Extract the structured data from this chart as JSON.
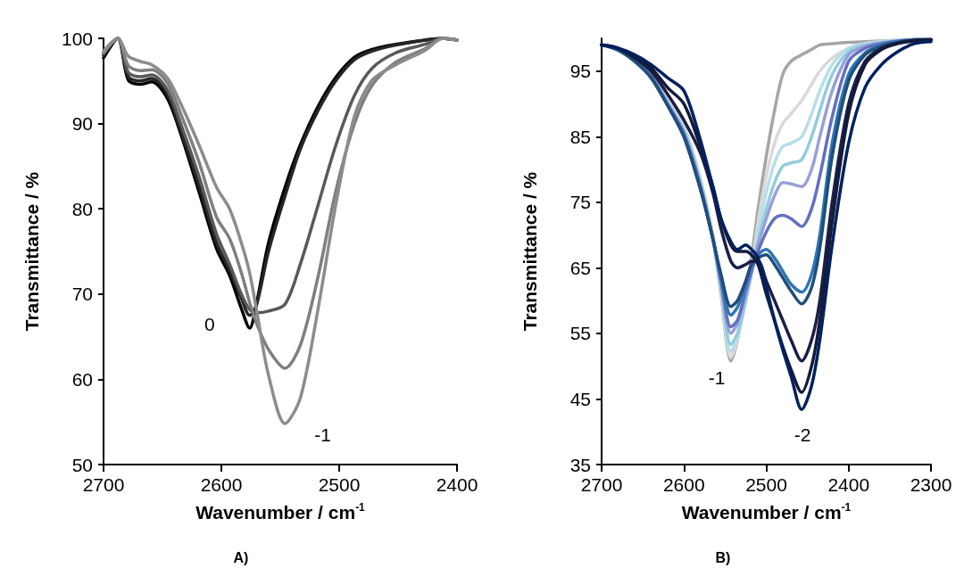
{
  "chart_data": [
    {
      "type": "line",
      "title": "A)",
      "xlabel": "Wavenumber / cm$^{-1}$",
      "ylabel": "Transmittance / %",
      "x": [
        2700,
        2688,
        2679,
        2669,
        2659,
        2646,
        2634,
        2619,
        2604,
        2593,
        2583,
        2576,
        2570,
        2560,
        2546,
        2533,
        2518,
        2503,
        2487,
        2472,
        2452,
        2427,
        2412,
        2400
      ],
      "series": [
        {
          "color": "#000000",
          "values": [
            97.7,
            100,
            95.1,
            94.6,
            94.9,
            93.0,
            88.6,
            82.0,
            75.3,
            72.2,
            68.3,
            66.0,
            69.0,
            76.0,
            82.5,
            87.5,
            92.0,
            95.4,
            97.8,
            98.7,
            99.3,
            99.8,
            100,
            99.8
          ]
        },
        {
          "color": "#262626",
          "values": [
            98.0,
            100,
            95.5,
            95.0,
            95.3,
            93.5,
            89.0,
            82.8,
            76.0,
            72.8,
            69.5,
            67.5,
            68.8,
            75.0,
            81.5,
            87.0,
            91.5,
            95.0,
            97.5,
            98.5,
            99.2,
            99.8,
            100,
            99.8
          ]
        },
        {
          "color": "#595959",
          "values": [
            98.2,
            100,
            96.0,
            95.5,
            95.7,
            94.0,
            89.8,
            83.8,
            77.0,
            73.5,
            70.0,
            68.2,
            67.8,
            68.0,
            68.8,
            73.5,
            80.4,
            87.4,
            93.3,
            96.5,
            98.3,
            99.3,
            100,
            99.8
          ]
        },
        {
          "color": "#7f7f7f",
          "values": [
            98.3,
            100,
            96.8,
            96.2,
            96.3,
            94.8,
            91.0,
            85.5,
            79.0,
            76.5,
            72.5,
            69.0,
            66.5,
            63.5,
            61.3,
            64.0,
            72.0,
            82.0,
            90.0,
            94.5,
            97.2,
            98.8,
            100,
            99.8
          ]
        },
        {
          "color": "#8c8c8c",
          "values": [
            98.5,
            100,
            97.9,
            97.3,
            96.9,
            95.4,
            92.2,
            87.5,
            82.5,
            80.0,
            76.0,
            72.5,
            68.0,
            60.5,
            54.8,
            57.8,
            68.2,
            80.4,
            90.9,
            95.1,
            96.9,
            98.6,
            100,
            99.8
          ]
        }
      ],
      "xlim": [
        2700,
        2400
      ],
      "ylim": [
        50,
        100
      ],
      "xticks": [
        2700,
        2600,
        2500,
        2400
      ],
      "yticks": [
        50,
        60,
        70,
        80,
        90,
        100
      ],
      "annotations": [
        "0",
        "-1"
      ]
    },
    {
      "type": "line",
      "title": "B)",
      "xlabel": "Wavenumber / cm$^{-1}$",
      "ylabel": "Transmittance / %",
      "x": [
        2700,
        2680,
        2660,
        2640,
        2620,
        2600,
        2580,
        2565,
        2555,
        2543,
        2535,
        2525,
        2518,
        2510,
        2500,
        2490,
        2480,
        2470,
        2457,
        2445,
        2435,
        2420,
        2400,
        2380,
        2360,
        2340,
        2320,
        2300
      ],
      "series": [
        {
          "color": "#a6a6a6",
          "values": [
            99,
            98.3,
            96.8,
            94.5,
            90.5,
            86.5,
            78.5,
            70,
            61,
            50.8,
            54,
            61,
            66.5,
            74,
            82,
            89,
            94.5,
            96.5,
            97.5,
            98.3,
            99,
            99.2,
            99.4,
            99.5,
            99.6,
            99.7,
            99.8,
            99.8
          ]
        },
        {
          "color": "#d9d9d9",
          "values": [
            99,
            98.3,
            96.8,
            94.5,
            90.5,
            86.5,
            78.5,
            70,
            61.5,
            51.3,
            54,
            60,
            65,
            72,
            79,
            84,
            87,
            88.5,
            90.5,
            93,
            95,
            97,
            98.5,
            99.2,
            99.5,
            99.7,
            99.8,
            99.8
          ]
        },
        {
          "color": "#b7dee8",
          "values": [
            99,
            98.3,
            96.8,
            94.3,
            90.3,
            86,
            78,
            69.5,
            61.5,
            52.2,
            54.5,
            60,
            64.5,
            70.5,
            76.5,
            81,
            83.5,
            84,
            85,
            88.5,
            92,
            96,
            98.5,
            99.2,
            99.5,
            99.7,
            99.8,
            99.8
          ]
        },
        {
          "color": "#92cddc",
          "values": [
            99,
            98.3,
            96.8,
            94.3,
            90.3,
            86,
            78,
            69.5,
            62,
            53.3,
            55,
            60,
            64,
            69,
            74,
            78,
            80.5,
            81,
            81.5,
            85,
            89,
            94.5,
            98,
            99,
            99.4,
            99.6,
            99.8,
            99.8
          ]
        },
        {
          "color": "#9a9fd8",
          "values": [
            99,
            98.3,
            96.8,
            94.2,
            90,
            85.5,
            77.5,
            69.5,
            62.5,
            55,
            56.5,
            61,
            64.5,
            68.5,
            72.5,
            76,
            78,
            77.8,
            77.4,
            80,
            85,
            92,
            97.5,
            98.8,
            99.3,
            99.6,
            99.8,
            99.8
          ]
        },
        {
          "color": "#6470c0",
          "values": [
            99,
            98.3,
            96.7,
            94.2,
            90,
            85.5,
            77.5,
            69.5,
            63,
            56,
            57,
            61.5,
            64.5,
            67.5,
            70.5,
            72.5,
            73,
            72.5,
            71.3,
            74,
            79,
            88,
            96.5,
            98.5,
            99.2,
            99.6,
            99.8,
            99.8
          ]
        },
        {
          "color": "#2e75b6",
          "values": [
            99,
            98.2,
            96.5,
            94,
            89.8,
            85,
            77,
            69.5,
            63.5,
            57.8,
            59,
            62.5,
            65.5,
            67,
            67.8,
            66.5,
            64.5,
            62.5,
            61.3,
            64,
            70,
            84,
            94.5,
            97.8,
            99,
            99.5,
            99.8,
            99.8
          ]
        },
        {
          "color": "#1f4e79",
          "values": [
            99,
            98.2,
            96.5,
            94,
            89.8,
            85,
            77,
            69.5,
            64,
            59.1,
            60,
            63,
            65.5,
            66.5,
            67,
            65.5,
            63.5,
            61.5,
            59.5,
            62,
            68,
            82,
            93.5,
            97.5,
            98.8,
            99.4,
            99.7,
            99.8
          ]
        },
        {
          "color": "#1b1f45",
          "values": [
            99,
            98.5,
            97,
            95,
            91.5,
            87.5,
            82.5,
            76.5,
            71,
            66,
            65,
            65.5,
            66,
            66,
            63,
            60,
            57,
            54,
            50.8,
            54,
            60,
            75,
            90,
            96.5,
            98.5,
            99.3,
            99.7,
            99.8
          ]
        },
        {
          "color": "#141b3a",
          "values": [
            99,
            98.5,
            97.2,
            95.5,
            92.5,
            90,
            83.5,
            77.5,
            72.5,
            68.5,
            67.5,
            67.5,
            67,
            65.5,
            61,
            57,
            53,
            49.5,
            46,
            50,
            57,
            72,
            88.5,
            96,
            98.3,
            99.2,
            99.6,
            99.8
          ]
        },
        {
          "color": "#002060",
          "values": [
            99,
            98.5,
            97.5,
            96,
            94,
            92,
            84.5,
            77.4,
            72.5,
            69,
            67.8,
            68.5,
            67.8,
            66.5,
            62,
            57,
            52.5,
            48.5,
            43.4,
            47,
            54,
            68.5,
            84,
            92.5,
            96,
            98,
            99.2,
            99.5
          ]
        }
      ],
      "xlim": [
        2700,
        2300
      ],
      "ylim": [
        35,
        100
      ],
      "xticks": [
        2700,
        2600,
        2500,
        2400,
        2300
      ],
      "yticks": [
        35,
        45,
        55,
        65,
        75,
        85,
        95
      ],
      "annotations": [
        "-1",
        "-2"
      ]
    }
  ]
}
